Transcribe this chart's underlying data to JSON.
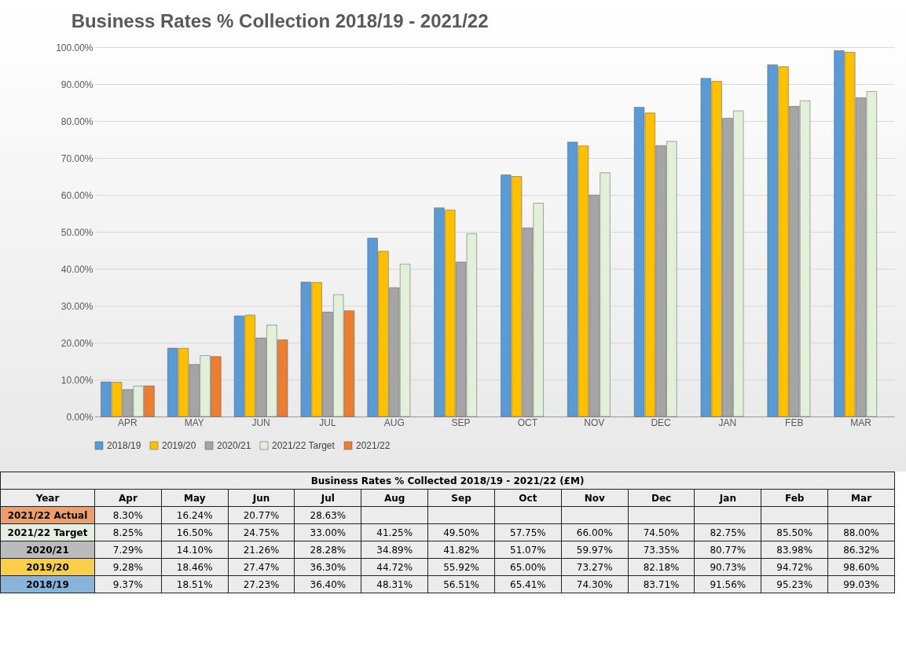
{
  "chart_data": {
    "type": "bar",
    "title": "Business Rates % Collection 2018/19 - 2021/22",
    "categories": [
      "APR",
      "MAY",
      "JUN",
      "JUL",
      "AUG",
      "SEP",
      "OCT",
      "NOV",
      "DEC",
      "JAN",
      "FEB",
      "MAR"
    ],
    "series": [
      {
        "name": "2018/19",
        "color": "#5b9bd5",
        "values": [
          9.37,
          18.51,
          27.23,
          36.4,
          48.31,
          56.51,
          65.41,
          74.3,
          83.71,
          91.56,
          95.23,
          99.03
        ],
        "value_labels": [
          "9.37%",
          "18.51%",
          "27.23%",
          "36.40%",
          "48.31%",
          "56.51%",
          "65.41%",
          "74.30%",
          "83.71%",
          "91.56%",
          "95.23%",
          "99.03%"
        ]
      },
      {
        "name": "2019/20",
        "color": "#ffc000",
        "values": [
          9.28,
          18.46,
          27.47,
          36.3,
          44.72,
          55.92,
          65.0,
          73.27,
          82.18,
          90.73,
          94.72,
          98.6
        ],
        "value_labels": [
          "9.28%",
          "18.46%",
          "27.47%",
          "36.30%",
          "44.72%",
          "55.92%",
          "65.00%",
          "73.27%",
          "82.18%",
          "90.73%",
          "94.72%",
          "98.60%"
        ]
      },
      {
        "name": "2020/21",
        "color": "#a5a5a5",
        "values": [
          7.29,
          14.1,
          21.26,
          28.28,
          34.89,
          41.82,
          51.07,
          59.97,
          73.35,
          80.77,
          83.98,
          86.32
        ],
        "value_labels": [
          "7.29%",
          "14.10%",
          "21.26%",
          "28.28%",
          "34.89%",
          "41.82%",
          "51.07%",
          "59.97%",
          "73.35%",
          "80.77%",
          "83.98%",
          "86.32%"
        ]
      },
      {
        "name": "2021/22 Target",
        "color": "#e2f0d9",
        "values": [
          8.25,
          16.5,
          24.75,
          33.0,
          41.25,
          49.5,
          57.75,
          66.0,
          74.5,
          82.75,
          85.5,
          88.0
        ],
        "value_labels": [
          "8.25%",
          "16.50%",
          "24.75%",
          "33.00%",
          "41.25%",
          "49.50%",
          "57.75%",
          "66.00%",
          "74.50%",
          "82.75%",
          "85.50%",
          "88.00%"
        ]
      },
      {
        "name": "2021/22",
        "color": "#ed7d31",
        "values": [
          8.3,
          16.24,
          20.77,
          28.63,
          null,
          null,
          null,
          null,
          null,
          null,
          null,
          null
        ],
        "value_labels": [
          "8.30%",
          "16.24%",
          "20.77%",
          "28.63%",
          null,
          null,
          null,
          null,
          null,
          null,
          null,
          null
        ]
      }
    ],
    "ylim": [
      0,
      100
    ],
    "yticks": [
      {
        "value": 0,
        "label": "0.00%"
      },
      {
        "value": 10,
        "label": "10.00%"
      },
      {
        "value": 20,
        "label": "20.00%"
      },
      {
        "value": 30,
        "label": "30.00%"
      },
      {
        "value": 40,
        "label": "40.00%"
      },
      {
        "value": 50,
        "label": "50.00%"
      },
      {
        "value": 60,
        "label": "60.00%"
      },
      {
        "value": 70,
        "label": "70.00%"
      },
      {
        "value": 80,
        "label": "80.00%"
      },
      {
        "value": 90,
        "label": "90.00%"
      },
      {
        "value": 100,
        "label": "100.00%"
      }
    ],
    "grid": "y",
    "legend": "bottom",
    "annotations": [
      "Business Rates % Collected 2018/19 - 2021/22 (£M)",
      "Year",
      "Apr",
      "May",
      "Jun",
      "Jul",
      "Aug",
      "Sep",
      "Oct",
      "Nov",
      "Dec",
      "Jan",
      "Feb",
      "Mar",
      "2021/22 Actual"
    ]
  }
}
